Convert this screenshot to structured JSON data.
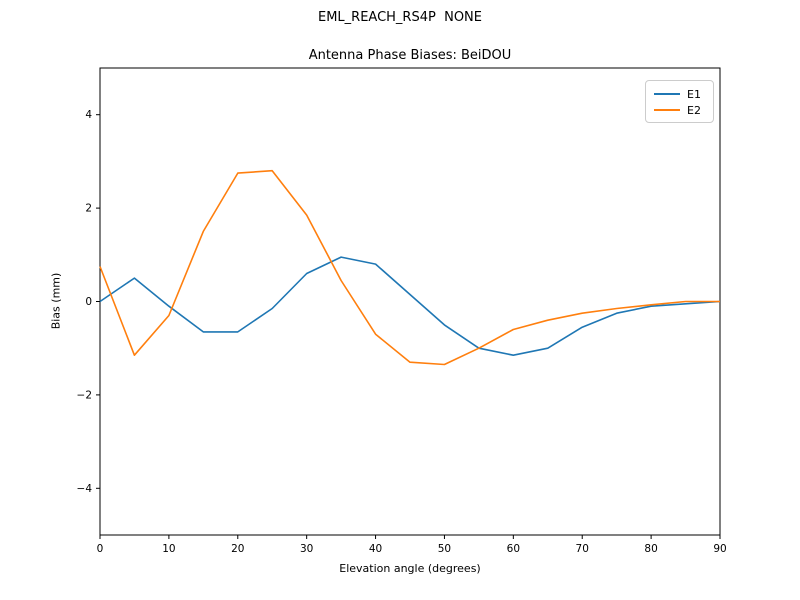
{
  "figure": {
    "title": "EML_REACH_RS4P  NONE",
    "background": "#ffffff",
    "axis_color": "#000000"
  },
  "chart_data": {
    "type": "line",
    "title": "Antenna Phase Biases: BeiDOU",
    "xlabel": "Elevation angle (degrees)",
    "ylabel": "Bias (mm)",
    "xlim": [
      0,
      90
    ],
    "ylim": [
      -5,
      5
    ],
    "grid": false,
    "legend_position": "upper right",
    "xticks": [
      0,
      10,
      20,
      30,
      40,
      50,
      60,
      70,
      80,
      90
    ],
    "xticklabels": [
      "0",
      "10",
      "20",
      "30",
      "40",
      "50",
      "60",
      "70",
      "80",
      "90"
    ],
    "yticks": [
      -4,
      -2,
      0,
      2,
      4
    ],
    "yticklabels": [
      "−4",
      "−2",
      "0",
      "2",
      "4"
    ],
    "x": [
      0,
      5,
      10,
      15,
      20,
      25,
      30,
      35,
      40,
      45,
      50,
      55,
      60,
      65,
      70,
      75,
      80,
      85,
      90
    ],
    "series": [
      {
        "name": "E1",
        "color": "#1f77b4",
        "values": [
          0.0,
          0.5,
          -0.1,
          -0.65,
          -0.65,
          -0.15,
          0.6,
          0.95,
          0.8,
          0.15,
          -0.5,
          -1.0,
          -1.15,
          -1.0,
          -0.55,
          -0.25,
          -0.1,
          -0.05,
          0.0
        ]
      },
      {
        "name": "E2",
        "color": "#ff7f0e",
        "values": [
          0.75,
          -1.15,
          -0.3,
          1.5,
          2.75,
          2.8,
          1.85,
          0.45,
          -0.7,
          -1.3,
          -1.35,
          -1.0,
          -0.6,
          -0.4,
          -0.25,
          -0.15,
          -0.07,
          0.0,
          0.0
        ]
      }
    ]
  }
}
